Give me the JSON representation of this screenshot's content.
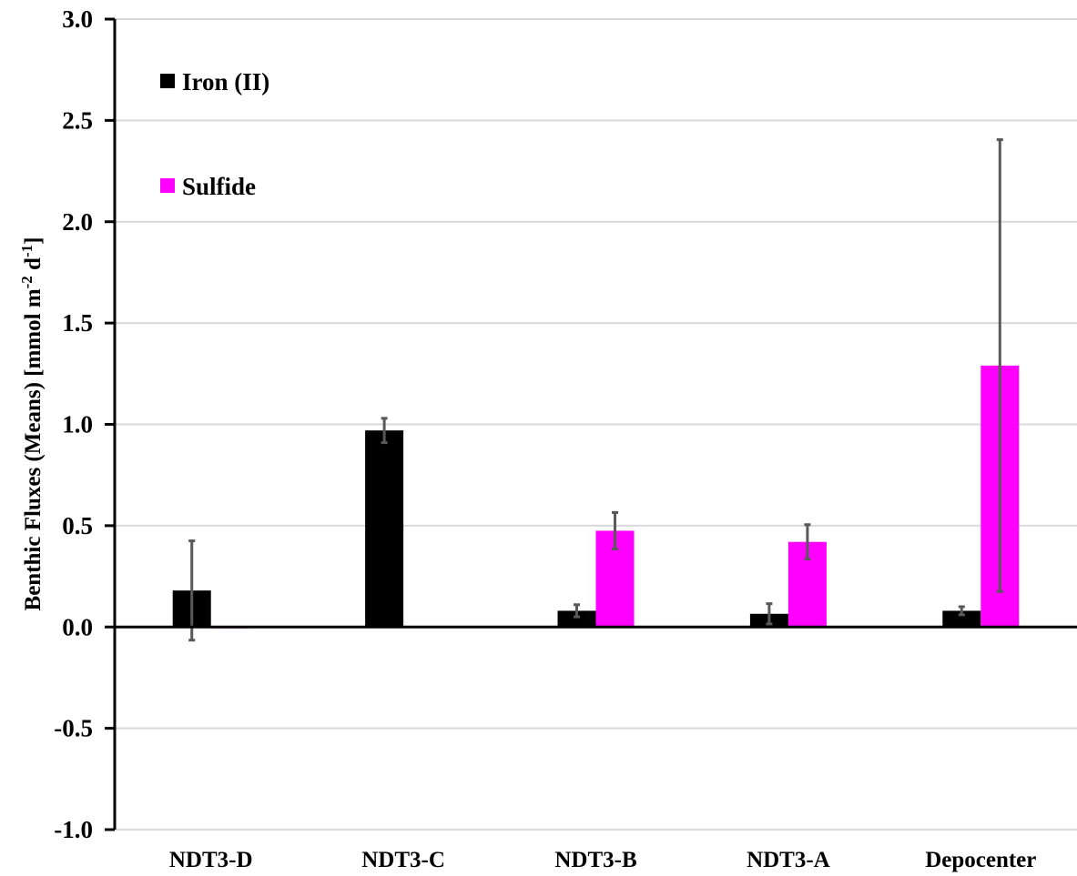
{
  "chart_data": {
    "type": "bar",
    "categories": [
      "NDT3-D",
      "NDT3-C",
      "NDT3-B",
      "NDT3-A",
      "Depocenter"
    ],
    "series": [
      {
        "name": "Iron (II)",
        "color": "#000000",
        "values": [
          0.18,
          0.97,
          0.08,
          0.065,
          0.08
        ],
        "error": [
          0.245,
          0.06,
          0.03,
          0.05,
          0.02
        ]
      },
      {
        "name": "Sulfide",
        "color": "#ff00ff",
        "values": [
          -0.002,
          null,
          0.475,
          0.42,
          1.29
        ],
        "error": [
          null,
          null,
          0.09,
          0.085,
          1.115
        ]
      }
    ],
    "ylim": [
      -1.0,
      3.0
    ],
    "yticks": [
      -1.0,
      -0.5,
      0.0,
      0.5,
      1.0,
      1.5,
      2.0,
      2.5,
      3.0
    ],
    "ytick_labels": [
      "-1.0",
      "-0.5",
      "0.0",
      "0.5",
      "1.0",
      "1.5",
      "2.0",
      "2.5",
      "3.0"
    ],
    "ylabel": {
      "main": "Benthic Fluxes (Means) [mmol m",
      "sup1": "-2",
      "mid": " d",
      "sup2": "-1",
      "end": "]"
    },
    "xlabel": "",
    "title": "",
    "grid": true,
    "legend_position": "top-left",
    "error_bar_color": "#595959"
  }
}
